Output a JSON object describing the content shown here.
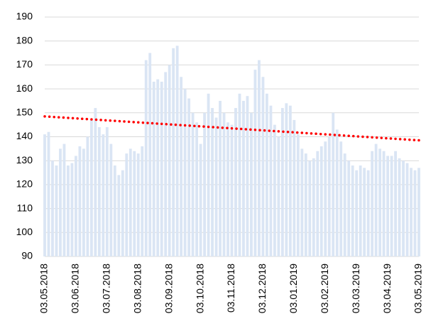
{
  "chart_data": {
    "type": "bar",
    "categories": [
      "03.05.2018",
      null,
      null,
      null,
      null,
      null,
      null,
      null,
      "03.06.2018",
      null,
      null,
      null,
      null,
      null,
      null,
      null,
      "03.07.2018",
      null,
      null,
      null,
      null,
      null,
      null,
      null,
      "03.08.2018",
      null,
      null,
      null,
      null,
      null,
      null,
      null,
      "03.09.2018",
      null,
      null,
      null,
      null,
      null,
      null,
      null,
      "03.10.2018",
      null,
      null,
      null,
      null,
      null,
      null,
      null,
      "03.11.2018",
      null,
      null,
      null,
      null,
      null,
      null,
      null,
      "03.12.2018",
      null,
      null,
      null,
      null,
      null,
      null,
      null,
      "03.01.2019",
      null,
      null,
      null,
      null,
      null,
      null,
      null,
      "03.02.2019",
      null,
      null,
      null,
      null,
      null,
      null,
      null,
      "03.03.2019",
      null,
      null,
      null,
      null,
      null,
      null,
      null,
      "03.04.2019",
      null,
      null,
      null,
      null,
      null,
      null,
      null,
      "03.05.2019"
    ],
    "values": [
      141,
      142,
      130,
      128,
      135,
      137,
      128,
      129,
      132,
      136,
      135,
      140,
      147,
      152,
      144,
      141,
      144,
      137,
      128,
      124,
      126,
      133,
      135,
      134,
      133,
      136,
      172,
      175,
      163,
      164,
      163,
      167,
      170,
      177,
      178,
      165,
      160,
      156,
      150,
      146,
      137,
      150,
      158,
      152,
      148,
      155,
      150,
      146,
      145,
      152,
      158,
      155,
      157,
      150,
      168,
      172,
      165,
      158,
      153,
      145,
      140,
      152,
      154,
      153,
      147,
      141,
      135,
      133,
      130,
      131,
      134,
      136,
      138,
      140,
      150,
      143,
      138,
      133,
      130,
      128,
      126,
      128,
      127,
      126,
      134,
      137,
      135,
      134,
      132,
      132,
      134,
      131,
      130,
      129,
      127,
      126,
      127
    ],
    "color": "#dae5f4",
    "trend": {
      "values": [
        148.5,
        138.5
      ],
      "color": "#ff0000"
    },
    "ylim": [
      90,
      190
    ],
    "yticks": [
      90,
      100,
      110,
      120,
      130,
      140,
      150,
      160,
      170,
      180,
      190
    ],
    "grid": true
  }
}
